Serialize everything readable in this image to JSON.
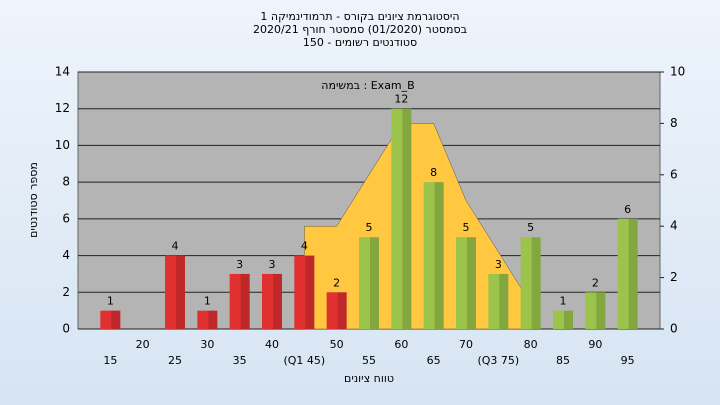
{
  "chart_data": {
    "type": "bar",
    "title": [
      "היסטוגרמת ציונים בקורס - תרמודינמיקה 1",
      "בסמסטר (01/2020) סמסטר חורף 2020/21",
      "סטודנטים רשומים - 150"
    ],
    "annotation": "במשימה : Exam_B",
    "x_label": "טווח ציונים",
    "y_label": "מספר סטודנטים",
    "categories": [
      "15",
      "20",
      "25",
      "30",
      "35",
      "40",
      "(Q1 45)",
      "50",
      "55",
      "60",
      "65",
      "70",
      "(Q3 75)",
      "80",
      "85",
      "90",
      "95"
    ],
    "series": [
      {
        "type": "bar",
        "values": [
          1,
          null,
          4,
          1,
          3,
          3,
          4,
          2,
          5,
          12,
          8,
          5,
          3,
          5,
          1,
          2,
          6
        ],
        "colors": [
          "#e03030",
          null,
          "#e03030",
          "#e03030",
          "#e03030",
          "#e03030",
          "#e03030",
          "#e03030",
          "#9cc44a",
          "#9cc44a",
          "#9cc44a",
          "#9cc44a",
          "#9cc44a",
          "#9cc44a",
          "#9cc44a",
          "#9cc44a",
          "#9cc44a"
        ]
      },
      {
        "type": "area",
        "axis": "y2",
        "color": "#ffc840",
        "values": [
          null,
          null,
          null,
          null,
          null,
          null,
          4,
          4,
          6,
          8,
          8,
          5,
          3,
          1,
          null,
          null,
          null
        ]
      }
    ],
    "ylim": [
      0,
      14
    ],
    "yticks": [
      0,
      2,
      4,
      6,
      8,
      10,
      12,
      14
    ],
    "y2lim": [
      0,
      10
    ],
    "y2ticks": [
      0,
      2,
      4,
      6,
      8,
      10
    ],
    "grid": true
  }
}
